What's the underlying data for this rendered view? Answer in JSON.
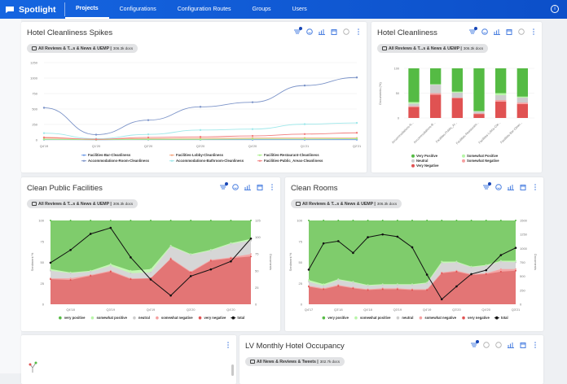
{
  "nav": {
    "app_name": "Spotlight",
    "tabs": [
      {
        "label": "Projects",
        "active": true
      },
      {
        "label": "Configurations"
      },
      {
        "label": "Configuration Routes"
      },
      {
        "label": "Groups"
      },
      {
        "label": "Users"
      }
    ],
    "brand_color": "#1565e0"
  },
  "source_chip": {
    "label": "All Reviews & T...s & News & UEMP |",
    "docs": "306.3k docs"
  },
  "source_chip2": {
    "label": "All News & Reviews & Tweets |",
    "docs": "302.7k docs"
  },
  "cards": [
    {
      "title": "Hotel Cleanliness Spikes"
    },
    {
      "title": "Hotel Cleanliness"
    },
    {
      "title": "Clean Public Facilities"
    },
    {
      "title": "Clean Rooms"
    },
    {
      "title": ""
    },
    {
      "title": "LV Monthly Hotel Occupancy"
    }
  ],
  "chart_data": [
    {
      "type": "line",
      "categories": [
        "Q4'19",
        "Q1'20",
        "Q2'20",
        "Q3'20",
        "Q4'20",
        "Q1'21",
        "Q2'21"
      ],
      "ylim": [
        0,
        1250
      ],
      "yticks": [
        0,
        250,
        500,
        750,
        1000,
        1250
      ],
      "grid": true,
      "legend": "bottom",
      "series": [
        {
          "name": "Facilities-Bar-Cleanliness",
          "color": "#6f9be8",
          "values": [
            5,
            3,
            5,
            5,
            5,
            5,
            5
          ]
        },
        {
          "name": "Facilities-Lobby-Cleanliness",
          "color": "#f5a47c",
          "values": [
            30,
            10,
            20,
            25,
            30,
            30,
            30
          ]
        },
        {
          "name": "Facilities-Restaurant-Cleanliness",
          "color": "#a8ef88",
          "values": [
            10,
            5,
            10,
            10,
            15,
            15,
            20
          ]
        },
        {
          "name": "Accommodations-Room-Cleanliness",
          "color": "#7b93c8",
          "values": [
            520,
            85,
            320,
            535,
            610,
            880,
            1010
          ]
        },
        {
          "name": "Accommodations-Bathroom-Cleanliness",
          "color": "#9fe8ea",
          "values": [
            110,
            20,
            90,
            160,
            175,
            255,
            275
          ]
        },
        {
          "name": "Facilities-Public_Areas-Cleanliness",
          "color": "#f27d7d",
          "values": [
            40,
            10,
            40,
            50,
            65,
            95,
            115
          ]
        }
      ]
    },
    {
      "type": "bar",
      "stacked": "percent",
      "ylabel": "Documents (%)",
      "ylim": [
        0,
        100
      ],
      "yticks": [
        0,
        50,
        100
      ],
      "legend": "bottom",
      "categories": [
        "Accommodations-R...",
        "Accommodations-B...",
        "Facilities-Public_Ar...",
        "Facilities-Restaurant...",
        "Facilities-Lobby-Cle...",
        "Facilities-Bar-Clean..."
      ],
      "series": [
        {
          "name": "Very Negative",
          "color": "#e05252",
          "values": [
            22,
            47,
            40,
            8,
            33,
            28
          ]
        },
        {
          "name": "Somewhat Negative",
          "color": "#f5a0a0",
          "values": [
            2,
            3,
            1,
            1,
            3,
            3
          ]
        },
        {
          "name": "Neutral",
          "color": "#cccccc",
          "values": [
            5,
            17,
            10,
            4,
            10,
            10
          ]
        },
        {
          "name": "Somewhat Positive",
          "color": "#b8f5a8",
          "values": [
            3,
            1,
            2,
            1,
            4,
            2
          ]
        },
        {
          "name": "Very Positive",
          "color": "#55bb44",
          "values": [
            68,
            32,
            47,
            86,
            50,
            57
          ]
        }
      ],
      "legend_order": [
        "Very Positive",
        "Somewhat Positive",
        "Neutral",
        "Somewhat Negative",
        "Very Negative"
      ]
    },
    {
      "type": "area",
      "ylabel": "Sentiment %",
      "y2label": "Documents",
      "ylim": [
        0,
        100
      ],
      "y2lim": [
        0,
        125
      ],
      "yticks": [
        0,
        25,
        50,
        75,
        100
      ],
      "y2ticks": [
        0,
        25,
        50,
        75,
        100,
        125
      ],
      "xticks": [
        {
          "i": 1,
          "label": "Q4'18"
        },
        {
          "i": 3,
          "label": "Q3'19"
        },
        {
          "i": 5,
          "label": "Q4'19"
        },
        {
          "i": 7,
          "label": "Q3'20"
        },
        {
          "i": 9,
          "label": "Q4'20"
        }
      ],
      "stack_tops": {
        "very negative": [
          30,
          29,
          34,
          39,
          30,
          31,
          54,
          38,
          52,
          55,
          57
        ],
        "somewhat negative": [
          31,
          31,
          35,
          40,
          31,
          31,
          55,
          39,
          53,
          56,
          60
        ],
        "neutral": [
          40,
          37,
          39,
          46,
          37,
          38,
          69,
          59,
          64,
          72,
          76
        ],
        "somewhat positive": [
          42,
          38,
          40,
          48,
          40,
          42,
          70,
          60,
          65,
          73,
          78
        ],
        "very positive": [
          100,
          100,
          100,
          100,
          100,
          100,
          100,
          100,
          100,
          100,
          100
        ]
      },
      "total": [
        62,
        81,
        105,
        114,
        70,
        37,
        13,
        42,
        52,
        64,
        98
      ]
    },
    {
      "type": "area",
      "ylabel": "Sentiment %",
      "y2label": "Documents",
      "ylim": [
        0,
        100
      ],
      "y2lim": [
        0,
        1500
      ],
      "yticks": [
        0,
        25,
        50,
        75,
        100
      ],
      "y2ticks": [
        0,
        250,
        500,
        750,
        1000,
        1250,
        1500
      ],
      "xticks": [
        {
          "i": 0,
          "label": "Q4'17"
        },
        {
          "i": 2,
          "label": "Q3'18"
        },
        {
          "i": 4,
          "label": "Q4'18"
        },
        {
          "i": 6,
          "label": "Q3'19"
        },
        {
          "i": 8,
          "label": "Q4'19"
        },
        {
          "i": 10,
          "label": "Q3'20"
        },
        {
          "i": 12,
          "label": "Q4'20"
        },
        {
          "i": 14,
          "label": "Q3'21"
        }
      ],
      "stack_tops": {
        "very negative": [
          21,
          18,
          22,
          19,
          17,
          18,
          18,
          17,
          17,
          37,
          39,
          35,
          36,
          39,
          40
        ],
        "somewhat negative": [
          22,
          19,
          23,
          20,
          18,
          19,
          19,
          18,
          18,
          38,
          40,
          36,
          37,
          42,
          42
        ],
        "neutral": [
          27,
          22,
          29,
          26,
          22,
          23,
          23,
          23,
          25,
          49,
          50,
          44,
          46,
          51,
          50
        ],
        "somewhat positive": [
          29,
          24,
          30,
          27,
          23,
          24,
          24,
          24,
          26,
          51,
          51,
          45,
          47,
          52,
          52
        ],
        "very positive": [
          100,
          100,
          100,
          100,
          100,
          100,
          100,
          100,
          100,
          100,
          100,
          100,
          100,
          100,
          100
        ]
      },
      "total": [
        620,
        1090,
        1130,
        920,
        1200,
        1250,
        1210,
        1020,
        530,
        90,
        320,
        540,
        610,
        880,
        1010
      ]
    }
  ],
  "area_legend": [
    {
      "name": "very positive",
      "color": "#55bb44"
    },
    {
      "name": "somewhat positive",
      "color": "#b8f5a8"
    },
    {
      "name": "neutral",
      "color": "#cccccc"
    },
    {
      "name": "somewhat negative",
      "color": "#f5a0a0"
    },
    {
      "name": "very negative",
      "color": "#e05252"
    },
    {
      "name": "total",
      "color": "#111111"
    }
  ]
}
